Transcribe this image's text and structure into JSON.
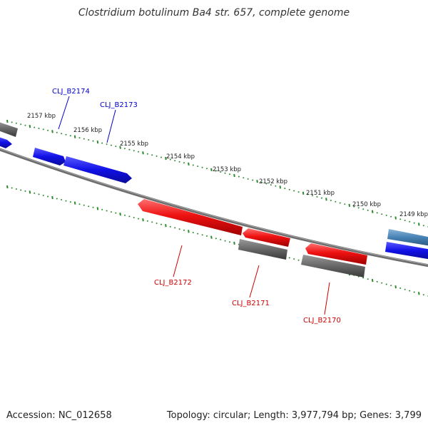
{
  "title": "Clostridium botulinum Ba4 str. 657, complete genome",
  "footer": {
    "accession": "Accession: NC_012658",
    "summary": "Topology: circular; Length: 3,977,794 bp; Genes: 3,799"
  },
  "colors": {
    "forward_gene": "#1010e6",
    "forward_gene_alt": "#4682b4",
    "reverse_gene": "#ee1111",
    "pseudo_gene": "#666666",
    "backbone": "#808080",
    "tick": "#2f8a2f",
    "forward_label": "#0000cc",
    "reverse_label": "#cc0000"
  },
  "scale_ticks": [
    "2157 kbp",
    "2156 kbp",
    "2155 kbp",
    "2154 kbp",
    "2153 kbp",
    "2152 kbp",
    "2151 kbp",
    "2150 kbp",
    "2149 kbp"
  ],
  "gene_labels": {
    "forward": [
      "CLJ_B2174",
      "CLJ_B2173"
    ],
    "reverse": [
      "CLJ_B2172",
      "CLJ_B2171",
      "CLJ_B2170"
    ]
  }
}
